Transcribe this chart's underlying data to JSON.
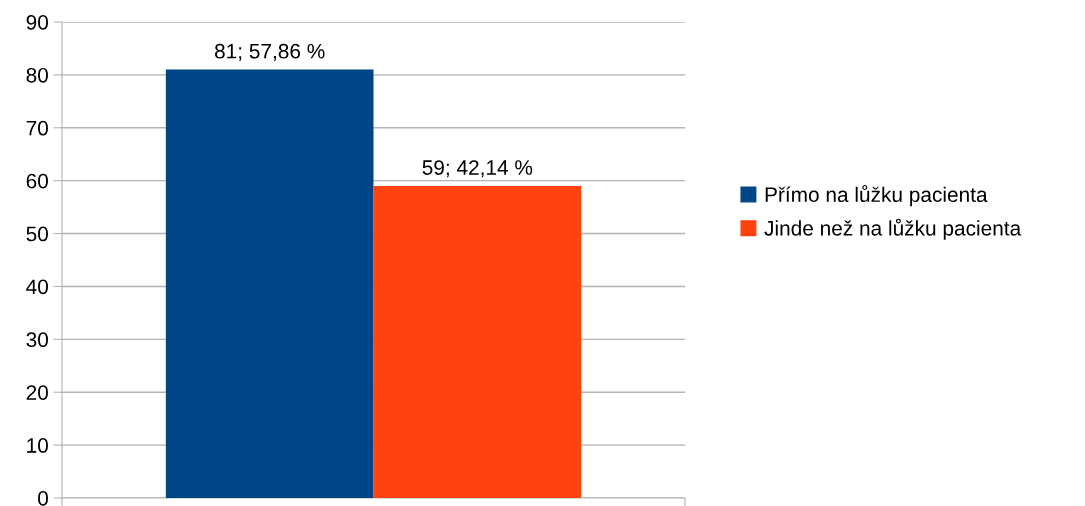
{
  "chart_data": {
    "type": "bar",
    "categories": [
      null
    ],
    "series": [
      {
        "name": "Přímo na lůžku pacienta",
        "color": "#004586",
        "values": [
          81
        ],
        "value_labels": [
          "81; 57,86 %"
        ]
      },
      {
        "name": "Jinde než na lůžku pacienta",
        "color": "#ff420e",
        "values": [
          59
        ],
        "value_labels": [
          "59; 42,14 %"
        ]
      }
    ],
    "ylim": [
      0,
      90
    ],
    "yticks": [
      0,
      10,
      20,
      30,
      40,
      50,
      60,
      70,
      80,
      90
    ],
    "grid": "y",
    "legend": "right"
  }
}
